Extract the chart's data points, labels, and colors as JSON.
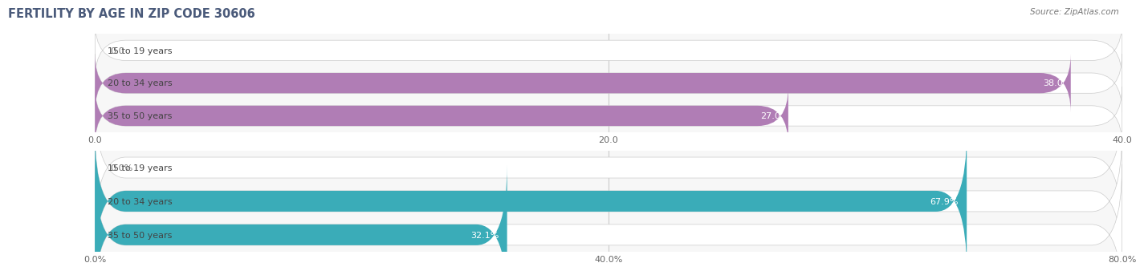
{
  "title": "FERTILITY BY AGE IN ZIP CODE 30606",
  "source": "Source: ZipAtlas.com",
  "top_chart": {
    "categories": [
      "15 to 19 years",
      "20 to 34 years",
      "35 to 50 years"
    ],
    "values": [
      0.0,
      38.0,
      27.0
    ],
    "xlim": [
      0,
      40
    ],
    "xticks": [
      0.0,
      20.0,
      40.0
    ],
    "bar_color": "#b07db5",
    "bar_bg_color": "#e8e8e8",
    "bar_height": 0.62,
    "label_inside_color": "#ffffff",
    "label_outside_color": "#777777"
  },
  "bottom_chart": {
    "categories": [
      "15 to 19 years",
      "20 to 34 years",
      "35 to 50 years"
    ],
    "values": [
      0.0,
      67.9,
      32.1
    ],
    "xlim": [
      0,
      80
    ],
    "xticks": [
      0.0,
      40.0,
      80.0
    ],
    "bar_color": "#3aacb8",
    "bar_bg_color": "#e8e8e8",
    "bar_height": 0.62,
    "label_inside_color": "#ffffff",
    "label_outside_color": "#777777"
  },
  "title_color": "#4a5a7a",
  "source_color": "#777777",
  "title_fontsize": 10.5,
  "source_fontsize": 7.5,
  "tick_fontsize": 8,
  "label_fontsize": 8,
  "category_fontsize": 8,
  "fig_bg_color": "#ffffff",
  "axes_bg_color": "#f7f7f7"
}
